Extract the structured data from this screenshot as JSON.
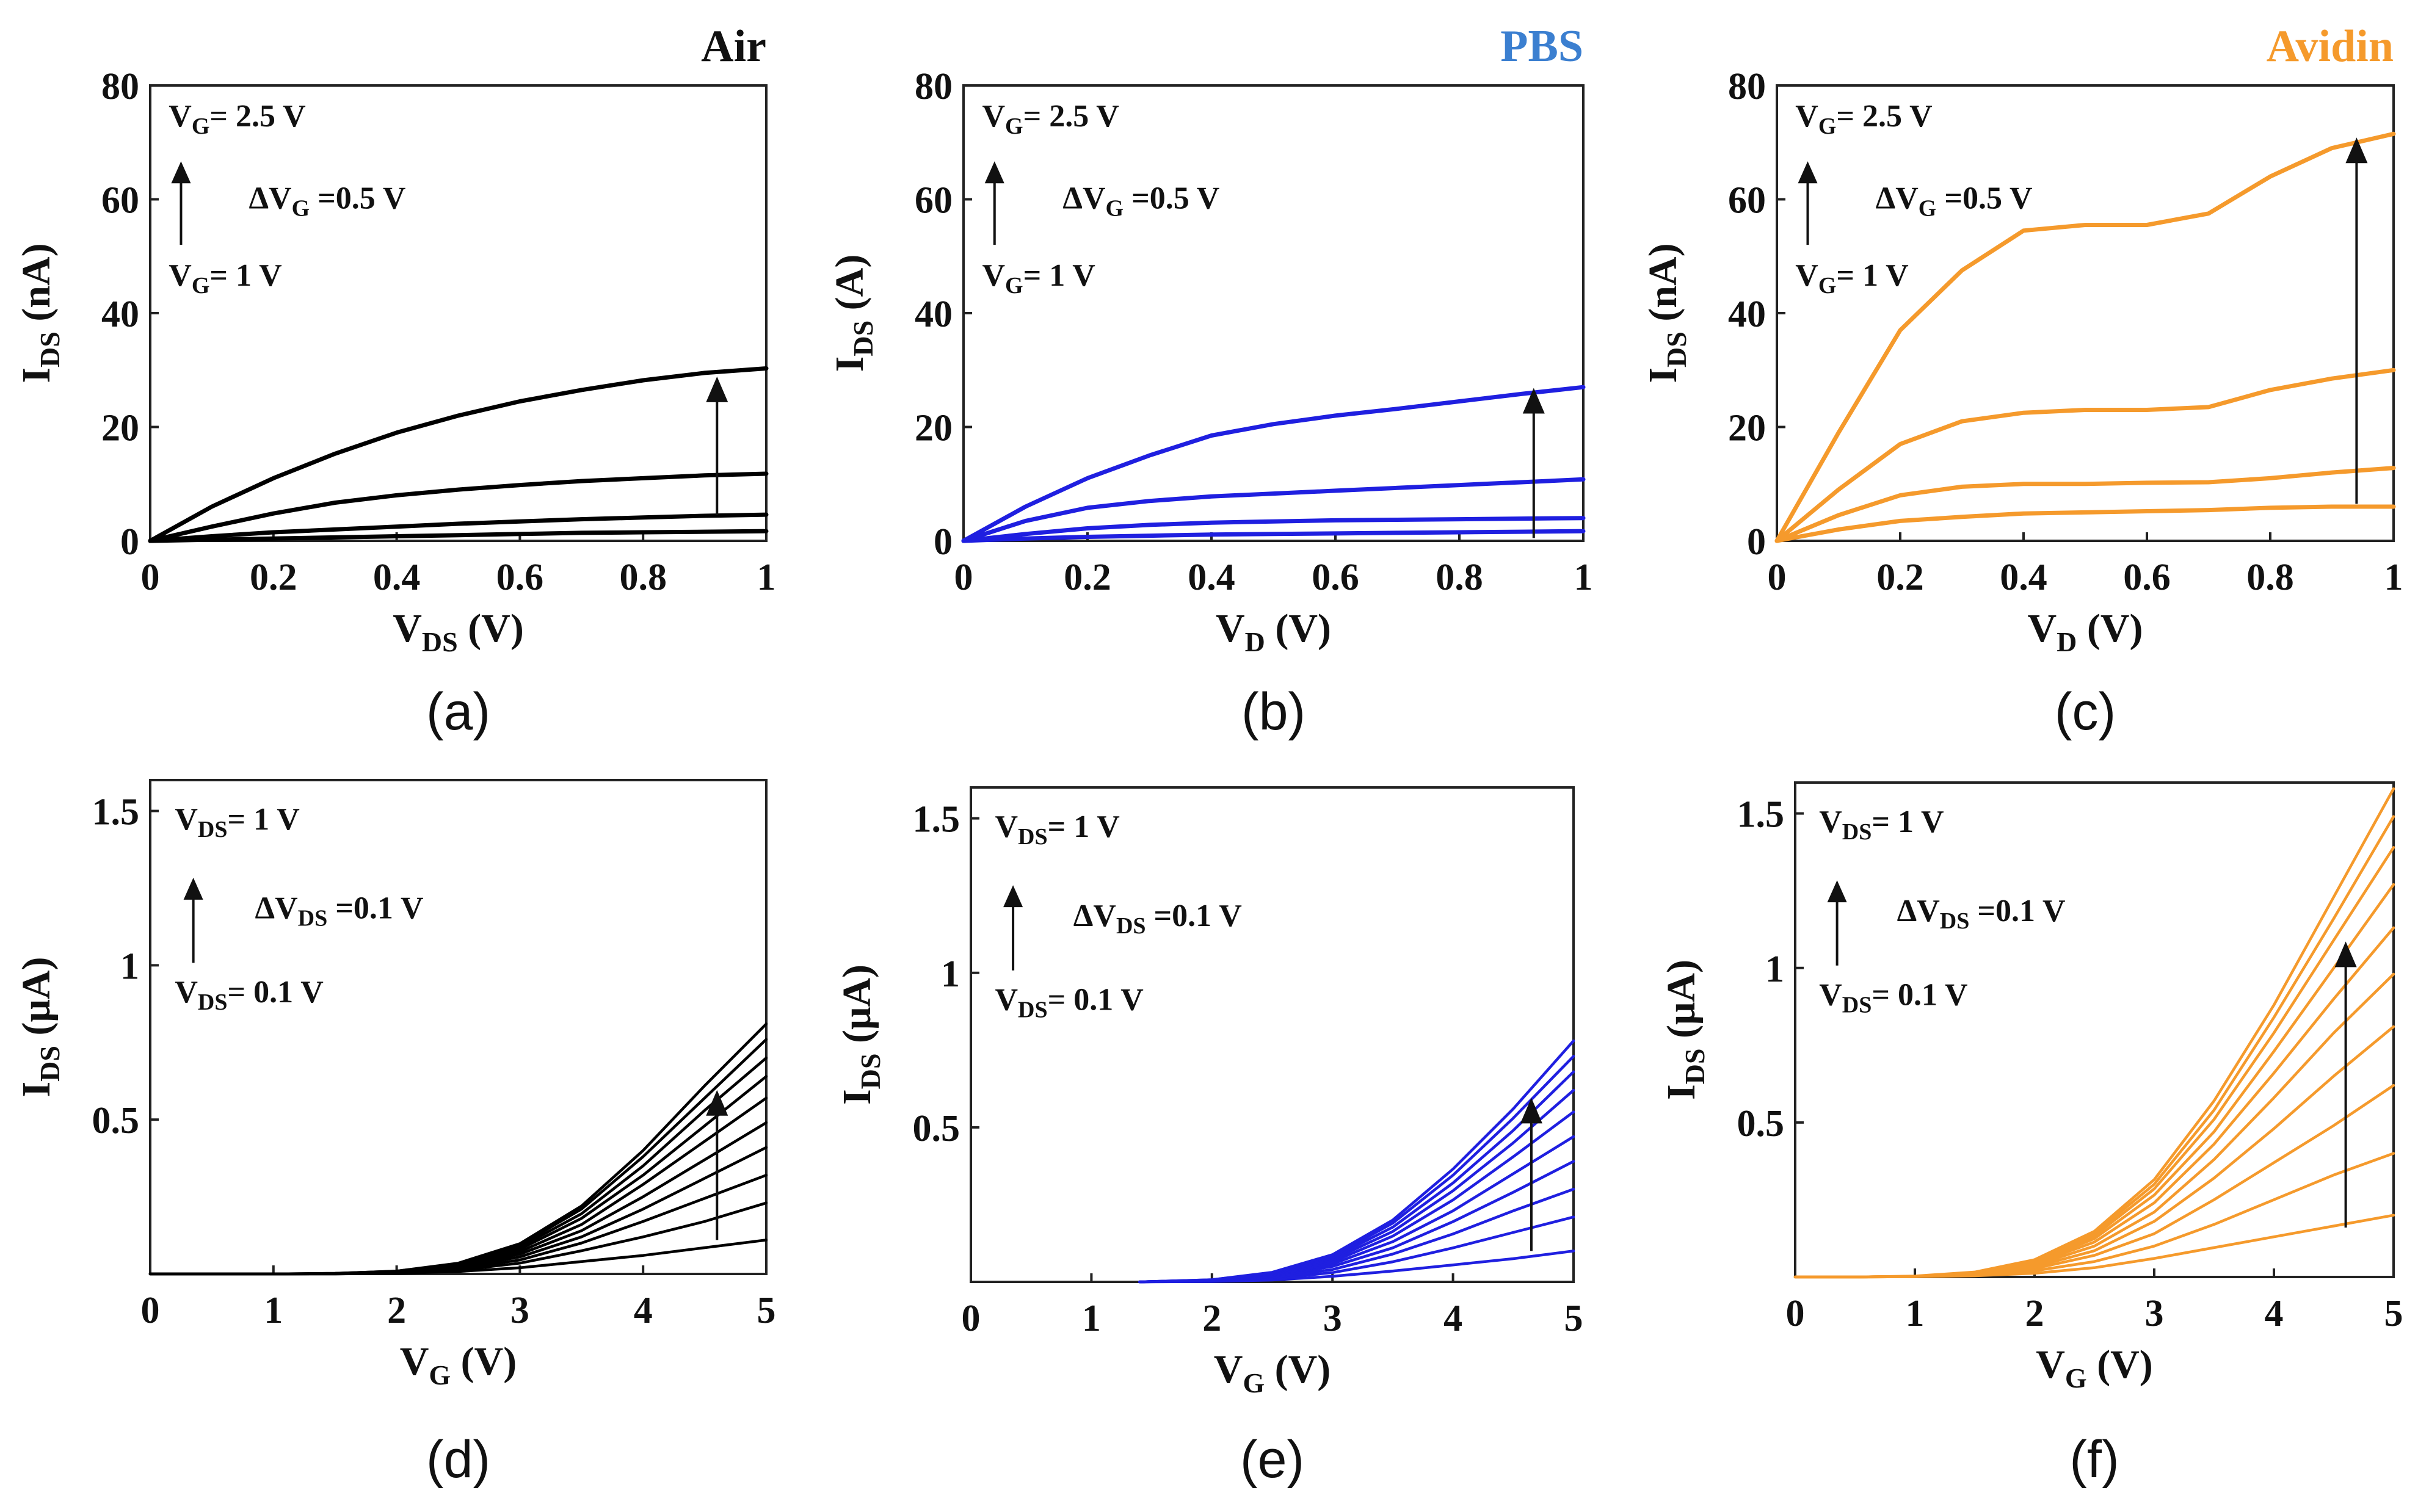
{
  "figure": {
    "panels": [
      {
        "id": "a",
        "caption": "(a)",
        "title": "Air",
        "color": "#000000",
        "xlabel": {
          "main": "V",
          "sub": "DS",
          "unit": " (V)"
        },
        "ylabel": {
          "main": "I",
          "sub": "DS",
          "unit": " (nA)"
        },
        "annotations": [
          {
            "main": "V",
            "sub": "G",
            "rest": "= 2.5 V"
          },
          {
            "main": "ΔV",
            "sub": "G",
            "rest": " =0.5 V"
          },
          {
            "main": "V",
            "sub": "G",
            "rest": "= 1 V"
          }
        ]
      },
      {
        "id": "b",
        "caption": "(b)",
        "title": "PBS",
        "color": "#1f1fe0",
        "xlabel": {
          "main": "V",
          "sub": "D",
          "unit": " (V)"
        },
        "ylabel": {
          "main": "I",
          "sub": "DS",
          "unit": " (A)"
        },
        "annotations": [
          {
            "main": "V",
            "sub": "G",
            "rest": "= 2.5 V"
          },
          {
            "main": "ΔV",
            "sub": "G",
            "rest": " =0.5 V"
          },
          {
            "main": "V",
            "sub": "G",
            "rest": "= 1 V"
          }
        ]
      },
      {
        "id": "c",
        "caption": "(c)",
        "title": "Avidin",
        "color": "#f59a2c",
        "xlabel": {
          "main": "V",
          "sub": "D",
          "unit": " (V)"
        },
        "ylabel": {
          "main": "I",
          "sub": "DS",
          "unit": " (nA)"
        },
        "annotations": [
          {
            "main": "V",
            "sub": "G",
            "rest": "= 2.5 V"
          },
          {
            "main": "ΔV",
            "sub": "G",
            "rest": " =0.5 V"
          },
          {
            "main": "V",
            "sub": "G",
            "rest": "= 1 V"
          }
        ]
      },
      {
        "id": "d",
        "caption": "(d)",
        "title": "",
        "color": "#000000",
        "xlabel": {
          "main": "V",
          "sub": "G",
          "unit": " (V)"
        },
        "ylabel": {
          "main": "I",
          "sub": "DS",
          "unit": " (μA)"
        },
        "annotations": [
          {
            "main": "V",
            "sub": "DS",
            "rest": "= 1 V"
          },
          {
            "main": "ΔV",
            "sub": "DS",
            "rest": " =0.1 V"
          },
          {
            "main": "V",
            "sub": "DS",
            "rest": "= 0.1 V"
          }
        ]
      },
      {
        "id": "e",
        "caption": "(e)",
        "title": "",
        "color": "#1f1fe0",
        "xlabel": {
          "main": "V",
          "sub": "G",
          "unit": " (V)"
        },
        "ylabel": {
          "main": "I",
          "sub": "DS",
          "unit": " (μA)"
        },
        "annotations": [
          {
            "main": "V",
            "sub": "DS",
            "rest": "= 1 V"
          },
          {
            "main": "ΔV",
            "sub": "DS",
            "rest": " =0.1 V"
          },
          {
            "main": "V",
            "sub": "DS",
            "rest": "= 0.1 V"
          }
        ]
      },
      {
        "id": "f",
        "caption": "(f)",
        "title": "",
        "color": "#f59a2c",
        "xlabel": {
          "main": "V",
          "sub": "G",
          "unit": " (V)"
        },
        "ylabel": {
          "main": "I",
          "sub": "DS",
          "unit": " (μA)"
        },
        "annotations": [
          {
            "main": "V",
            "sub": "DS",
            "rest": "= 1 V"
          },
          {
            "main": "ΔV",
            "sub": "DS",
            "rest": " =0.1 V"
          },
          {
            "main": "V",
            "sub": "DS",
            "rest": "= 0.1 V"
          }
        ]
      }
    ]
  },
  "chart_data": [
    {
      "panel": "a",
      "type": "line",
      "xlim": [
        0,
        1
      ],
      "ylim": [
        0,
        80
      ],
      "xticks": [
        "0",
        "0.2",
        "0.4",
        "0.6",
        "0.8",
        "1"
      ],
      "yticks": [
        "0",
        "20",
        "40",
        "60",
        "80"
      ],
      "grid": false,
      "x": [
        0,
        0.1,
        0.2,
        0.3,
        0.4,
        0.5,
        0.6,
        0.7,
        0.8,
        0.9,
        1.0
      ],
      "series": [
        {
          "values": [
            0,
            0.2,
            0.4,
            0.6,
            0.8,
            1.0,
            1.2,
            1.4,
            1.5,
            1.6,
            1.7
          ]
        },
        {
          "values": [
            0,
            0.8,
            1.5,
            2.0,
            2.5,
            3.0,
            3.4,
            3.8,
            4.1,
            4.4,
            4.6
          ]
        },
        {
          "values": [
            0,
            2.5,
            4.8,
            6.7,
            8.0,
            9.0,
            9.8,
            10.5,
            11.0,
            11.5,
            11.8
          ]
        },
        {
          "values": [
            0,
            6.0,
            11.0,
            15.3,
            19.0,
            22.0,
            24.5,
            26.5,
            28.2,
            29.5,
            30.3
          ]
        }
      ]
    },
    {
      "panel": "b",
      "type": "line",
      "xlim": [
        0,
        1
      ],
      "ylim": [
        0,
        80
      ],
      "xticks": [
        "0",
        "0.2",
        "0.4",
        "0.6",
        "0.8",
        "1"
      ],
      "yticks": [
        "0",
        "20",
        "40",
        "60",
        "80"
      ],
      "grid": false,
      "x": [
        0,
        0.1,
        0.2,
        0.3,
        0.4,
        0.5,
        0.6,
        0.7,
        0.8,
        0.9,
        1.0
      ],
      "series": [
        {
          "values": [
            0,
            0.4,
            0.7,
            0.9,
            1.1,
            1.2,
            1.3,
            1.4,
            1.5,
            1.6,
            1.7
          ]
        },
        {
          "values": [
            0,
            1.2,
            2.2,
            2.8,
            3.2,
            3.4,
            3.6,
            3.7,
            3.8,
            3.9,
            4.0
          ]
        },
        {
          "values": [
            0,
            3.5,
            5.8,
            7.0,
            7.8,
            8.3,
            8.8,
            9.3,
            9.8,
            10.3,
            10.8
          ]
        },
        {
          "values": [
            0,
            6.0,
            11.0,
            15.0,
            18.5,
            20.5,
            22.0,
            23.2,
            24.5,
            25.8,
            27.0
          ]
        }
      ]
    },
    {
      "panel": "c",
      "type": "line",
      "xlim": [
        0,
        1
      ],
      "ylim": [
        0,
        80
      ],
      "xticks": [
        "0",
        "0.2",
        "0.4",
        "0.6",
        "0.8",
        "1"
      ],
      "yticks": [
        "0",
        "20",
        "40",
        "60",
        "80"
      ],
      "grid": false,
      "x": [
        0,
        0.1,
        0.2,
        0.3,
        0.4,
        0.5,
        0.6,
        0.7,
        0.8,
        0.9,
        1.0
      ],
      "series": [
        {
          "values": [
            0,
            2.0,
            3.5,
            4.2,
            4.8,
            5.0,
            5.2,
            5.4,
            5.8,
            6.0,
            6.0
          ]
        },
        {
          "values": [
            0,
            4.5,
            8.0,
            9.5,
            10.0,
            10.0,
            10.2,
            10.3,
            11.0,
            12.0,
            12.8
          ]
        },
        {
          "values": [
            0,
            9.0,
            17.0,
            21.0,
            22.5,
            23.0,
            23.0,
            23.5,
            26.5,
            28.5,
            30.0
          ]
        },
        {
          "values": [
            0,
            19.0,
            37.0,
            47.5,
            54.5,
            55.5,
            55.5,
            57.5,
            64.0,
            69.0,
            71.5
          ]
        }
      ]
    },
    {
      "panel": "d",
      "type": "line",
      "xlim": [
        0,
        5
      ],
      "ylim": [
        0,
        1.6
      ],
      "xticks": [
        "0",
        "1",
        "2",
        "3",
        "4",
        "5"
      ],
      "yticks": [
        "",
        "0.5",
        "1",
        "1.5"
      ],
      "grid": false,
      "x": [
        0,
        0.5,
        1,
        1.5,
        2,
        2.5,
        3,
        3.5,
        4,
        4.5,
        5
      ],
      "series": [
        {
          "values": [
            0,
            0,
            0,
            0,
            0.002,
            0.008,
            0.02,
            0.04,
            0.06,
            0.085,
            0.11
          ]
        },
        {
          "values": [
            0,
            0,
            0,
            0,
            0.003,
            0.012,
            0.035,
            0.075,
            0.12,
            0.17,
            0.23
          ]
        },
        {
          "values": [
            0,
            0,
            0,
            0.001,
            0.004,
            0.016,
            0.045,
            0.1,
            0.17,
            0.245,
            0.32
          ]
        },
        {
          "values": [
            0,
            0,
            0,
            0.001,
            0.005,
            0.02,
            0.055,
            0.12,
            0.21,
            0.31,
            0.41
          ]
        },
        {
          "values": [
            0,
            0,
            0,
            0.001,
            0.006,
            0.023,
            0.064,
            0.14,
            0.25,
            0.37,
            0.49
          ]
        },
        {
          "values": [
            0,
            0,
            0,
            0.001,
            0.007,
            0.026,
            0.072,
            0.16,
            0.29,
            0.43,
            0.57
          ]
        },
        {
          "values": [
            0,
            0,
            0,
            0.001,
            0.008,
            0.029,
            0.08,
            0.18,
            0.32,
            0.48,
            0.64
          ]
        },
        {
          "values": [
            0,
            0,
            0,
            0.001,
            0.008,
            0.031,
            0.087,
            0.195,
            0.35,
            0.53,
            0.7
          ]
        },
        {
          "values": [
            0,
            0,
            0,
            0.002,
            0.009,
            0.033,
            0.093,
            0.21,
            0.38,
            0.57,
            0.76
          ]
        },
        {
          "values": [
            0,
            0,
            0,
            0.002,
            0.009,
            0.035,
            0.098,
            0.22,
            0.4,
            0.61,
            0.81
          ]
        }
      ]
    },
    {
      "panel": "e",
      "type": "line",
      "xlim": [
        0,
        5
      ],
      "ylim": [
        0,
        1.6
      ],
      "xticks": [
        "0",
        "1",
        "2",
        "3",
        "4",
        "5"
      ],
      "yticks": [
        "",
        "0.5",
        "1",
        "1.5"
      ],
      "grid": false,
      "x": [
        1.4,
        2,
        2.5,
        3,
        3.5,
        4,
        4.5,
        5
      ],
      "series": [
        {
          "values": [
            0,
            0.001,
            0.006,
            0.018,
            0.035,
            0.055,
            0.075,
            0.1
          ]
        },
        {
          "values": [
            0,
            0.002,
            0.01,
            0.03,
            0.065,
            0.11,
            0.16,
            0.21
          ]
        },
        {
          "values": [
            0,
            0.003,
            0.014,
            0.04,
            0.09,
            0.155,
            0.23,
            0.3
          ]
        },
        {
          "values": [
            0,
            0.004,
            0.017,
            0.05,
            0.11,
            0.195,
            0.29,
            0.39
          ]
        },
        {
          "values": [
            0,
            0.005,
            0.02,
            0.058,
            0.13,
            0.23,
            0.35,
            0.47
          ]
        },
        {
          "values": [
            0,
            0.005,
            0.023,
            0.065,
            0.148,
            0.265,
            0.405,
            0.55
          ]
        },
        {
          "values": [
            0,
            0.006,
            0.025,
            0.072,
            0.163,
            0.295,
            0.45,
            0.62
          ]
        },
        {
          "values": [
            0,
            0.006,
            0.027,
            0.078,
            0.177,
            0.32,
            0.49,
            0.68
          ]
        },
        {
          "values": [
            0,
            0.007,
            0.029,
            0.083,
            0.19,
            0.345,
            0.53,
            0.73
          ]
        },
        {
          "values": [
            0,
            0.007,
            0.031,
            0.088,
            0.2,
            0.365,
            0.56,
            0.78
          ]
        }
      ]
    },
    {
      "panel": "f",
      "type": "line",
      "xlim": [
        0,
        5
      ],
      "ylim": [
        0,
        1.6
      ],
      "xticks": [
        "0",
        "1",
        "2",
        "3",
        "4",
        "5"
      ],
      "yticks": [
        "",
        "0.5",
        "1",
        "1.5"
      ],
      "grid": false,
      "x": [
        0,
        0.5,
        1,
        1.5,
        2,
        2.5,
        3,
        3.5,
        4,
        4.5,
        5
      ],
      "series": [
        {
          "values": [
            0,
            0,
            0.001,
            0.004,
            0.012,
            0.03,
            0.06,
            0.095,
            0.13,
            0.165,
            0.2
          ]
        },
        {
          "values": [
            0,
            0,
            0.001,
            0.006,
            0.02,
            0.05,
            0.1,
            0.17,
            0.25,
            0.33,
            0.4
          ]
        },
        {
          "values": [
            0,
            0,
            0.001,
            0.008,
            0.027,
            0.07,
            0.14,
            0.25,
            0.37,
            0.49,
            0.62
          ]
        },
        {
          "values": [
            0,
            0,
            0.002,
            0.01,
            0.033,
            0.085,
            0.18,
            0.32,
            0.48,
            0.65,
            0.81
          ]
        },
        {
          "values": [
            0,
            0,
            0.002,
            0.011,
            0.038,
            0.1,
            0.21,
            0.38,
            0.58,
            0.79,
            0.98
          ]
        },
        {
          "values": [
            0,
            0,
            0.002,
            0.012,
            0.043,
            0.113,
            0.24,
            0.43,
            0.66,
            0.9,
            1.13
          ]
        },
        {
          "values": [
            0,
            0,
            0.002,
            0.013,
            0.047,
            0.124,
            0.265,
            0.47,
            0.73,
            1.0,
            1.27
          ]
        },
        {
          "values": [
            0,
            0,
            0.002,
            0.014,
            0.05,
            0.133,
            0.285,
            0.51,
            0.79,
            1.09,
            1.39
          ]
        },
        {
          "values": [
            0,
            0,
            0.002,
            0.015,
            0.053,
            0.141,
            0.3,
            0.54,
            0.84,
            1.16,
            1.49
          ]
        },
        {
          "values": [
            0,
            0,
            0.003,
            0.016,
            0.056,
            0.148,
            0.315,
            0.57,
            0.88,
            1.23,
            1.58
          ]
        }
      ]
    }
  ]
}
